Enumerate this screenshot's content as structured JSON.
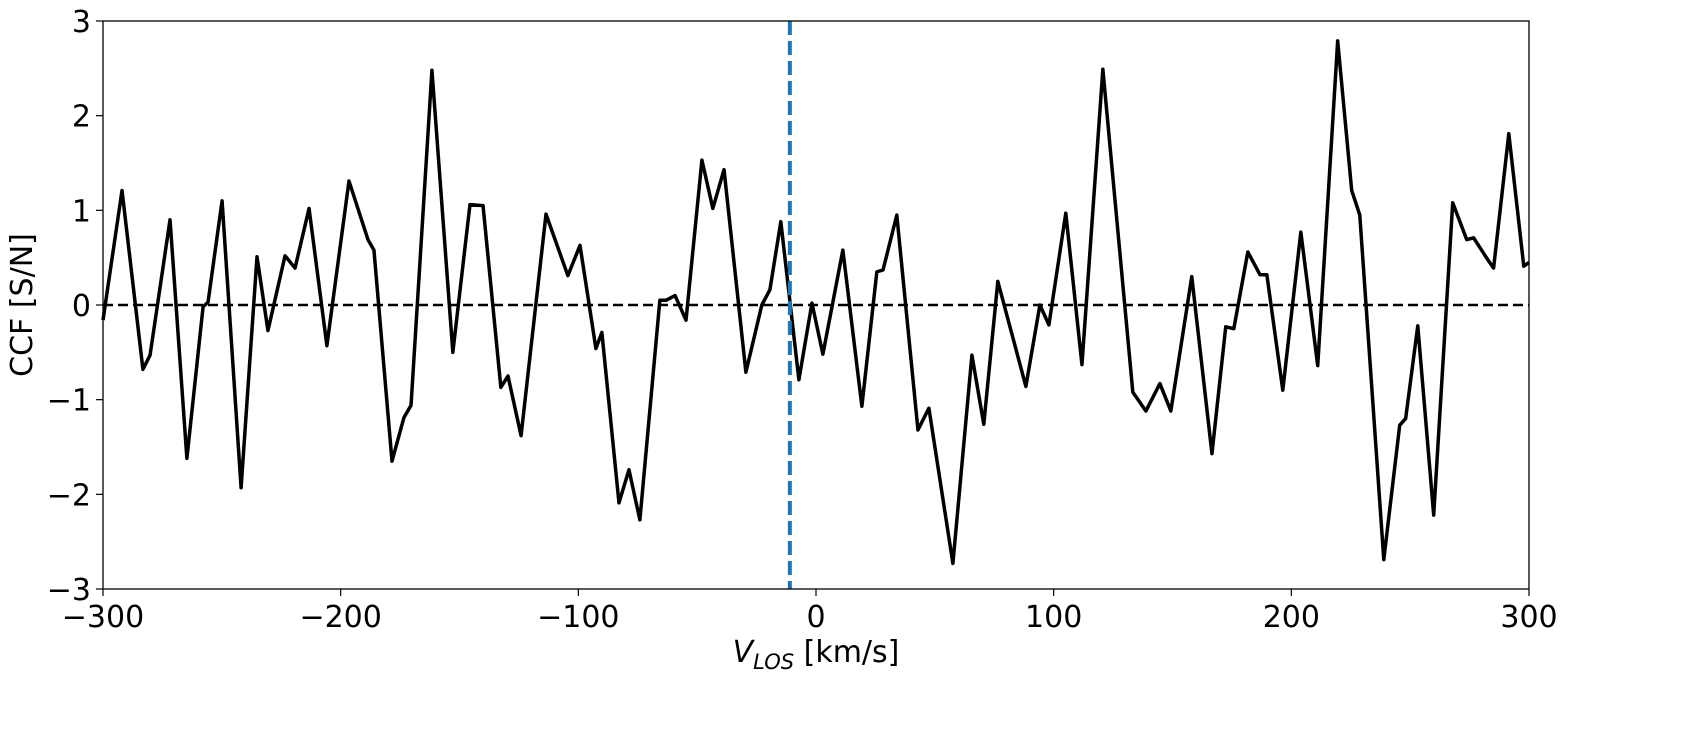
{
  "chart_data": {
    "type": "line",
    "x_label": {
      "main": "V",
      "sub": "LOS",
      "rest": " [km/s]"
    },
    "y_label": "CCF  [S/N]",
    "x": [
      -300,
      -292,
      -283.2,
      -280.2,
      -271.8,
      -264.7,
      -257.9,
      -255.8,
      -249.9,
      -241.9,
      -235.2,
      -230.6,
      -223.4,
      -219.2,
      -213.3,
      -205.8,
      -196.5,
      -188.5,
      -186,
      -178.4,
      -173.4,
      -170.4,
      -161.6,
      -152.8,
      -145.6,
      -140.1,
      -132.6,
      -129.6,
      -124.1,
      -113.6,
      -104.4,
      -99.3,
      -92.6,
      -90.1,
      -82.9,
      -78.7,
      -74.1,
      -65.7,
      -63.1,
      -59.3,
      -54.7,
      -48,
      -43.4,
      -38.7,
      -29.5,
      -22.8,
      -19.4,
      -14.8,
      -7.2,
      -1.7,
      2.9,
      11.3,
      19.3,
      25.6,
      28.2,
      34,
      42.9,
      47.5,
      57.6,
      65.6,
      70.6,
      76.5,
      88.3,
      94.2,
      98,
      105.1,
      111.9,
      120.7,
      133.3,
      138.8,
      144.7,
      149.3,
      158.1,
      166.6,
      172.4,
      175.8,
      181.7,
      186.8,
      189.7,
      196.4,
      204,
      211.1,
      219.5,
      225.4,
      228.8,
      238.9,
      245.6,
      248.1,
      253.2,
      259.9,
      267.9,
      273.8,
      276.7,
      282.6,
      285.1,
      291.5,
      297.8,
      300
    ],
    "series": [
      {
        "color": "#000000",
        "values": [
          -0.16,
          1.21,
          -0.68,
          -0.53,
          0.9,
          -1.62,
          -0.02,
          0.03,
          1.1,
          -1.93,
          0.51,
          -0.27,
          0.52,
          0.39,
          1.02,
          -0.43,
          1.31,
          0.69,
          0.58,
          -1.65,
          -1.19,
          -1.06,
          2.48,
          -0.5,
          1.06,
          1.05,
          -0.87,
          -0.75,
          -1.38,
          0.96,
          0.31,
          0.63,
          -0.46,
          -0.29,
          -2.09,
          -1.74,
          -2.27,
          0.05,
          0.05,
          0.1,
          -0.16,
          1.53,
          1.02,
          1.43,
          -0.71,
          0,
          0.16,
          0.88,
          -0.79,
          0.02,
          -0.52,
          0.58,
          -1.07,
          0.35,
          0.37,
          0.95,
          -1.32,
          -1.09,
          -2.73,
          -0.53,
          -1.26,
          0.25,
          -0.86,
          0,
          -0.21,
          0.97,
          -0.63,
          2.49,
          -0.92,
          -1.12,
          -0.83,
          -1.12,
          0.3,
          -1.57,
          -0.23,
          -0.25,
          0.56,
          0.32,
          0.32,
          -0.9,
          0.77,
          -0.64,
          2.79,
          1.21,
          0.95,
          -2.69,
          -1.27,
          -1.2,
          -0.22,
          -2.22,
          1.08,
          0.69,
          0.71,
          0.48,
          0.39,
          1.81,
          0.41,
          0.45
        ]
      }
    ],
    "hline": {
      "value": 0,
      "color": "#000000"
    },
    "vline": {
      "value": -11,
      "color": "#1f77b4"
    },
    "xlim": [
      -300,
      300
    ],
    "xticks": [
      {
        "value": -300,
        "label": "−300"
      },
      {
        "value": -200,
        "label": "−200"
      },
      {
        "value": -100,
        "label": "−100"
      },
      0,
      100,
      200,
      300
    ],
    "ylim": [
      -3,
      3
    ],
    "yticks": [
      {
        "value": -3,
        "label": "−3"
      },
      {
        "value": -2,
        "label": "−2"
      },
      {
        "value": -1,
        "label": "−1"
      },
      0,
      1,
      2,
      3
    ],
    "grid": false
  }
}
